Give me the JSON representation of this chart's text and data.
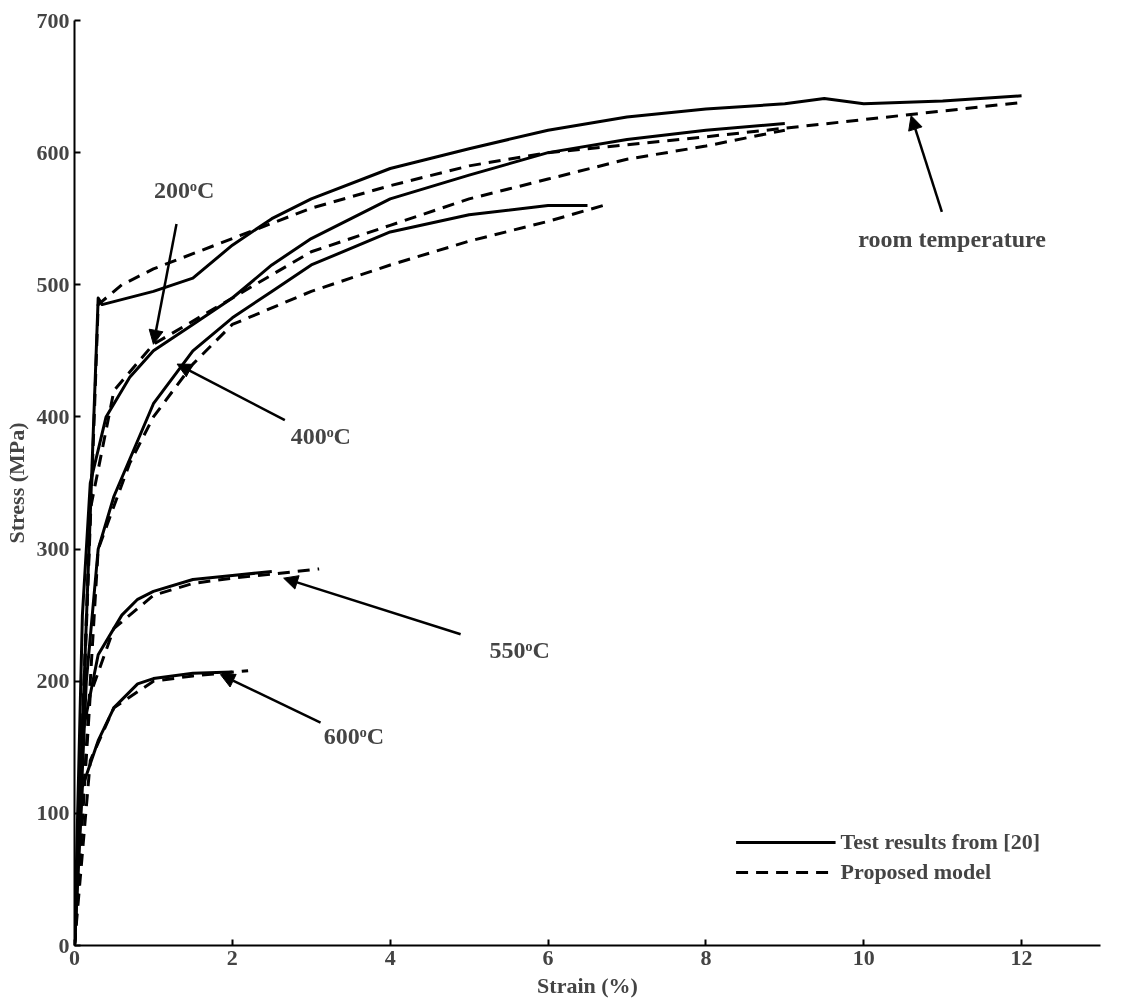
{
  "chart_data": {
    "type": "line",
    "xlabel": "Strain (%)",
    "ylabel": "Stress (MPa)",
    "xlim": [
      0,
      13
    ],
    "ylim": [
      0,
      700
    ],
    "xticks": [
      0,
      2,
      4,
      6,
      8,
      10,
      12
    ],
    "yticks": [
      0,
      100,
      200,
      300,
      400,
      500,
      600,
      700
    ],
    "grid": false,
    "legend": "bottom right",
    "marker": "none",
    "series": [
      {
        "name": "Test results from [20]",
        "color": "#000000",
        "line_style": "solid",
        "x": [
          0,
          0.3,
          0.35,
          1,
          1.5,
          2,
          2.5,
          3,
          4,
          5,
          6,
          7,
          8,
          9,
          9.5,
          10,
          11,
          12
        ],
        "values": [
          0,
          490,
          485,
          495,
          505,
          530,
          550,
          565,
          588,
          603,
          617,
          627,
          633,
          637,
          641,
          637,
          639,
          643
        ]
      },
      {
        "name": "Proposed model",
        "color": "#000000",
        "line_style": "dashed",
        "x": [
          0,
          0.25,
          0.3,
          0.6,
          1,
          2,
          3,
          4,
          5,
          6,
          8,
          10,
          12
        ],
        "values": [
          0,
          400,
          485,
          500,
          512,
          535,
          558,
          575,
          590,
          600,
          612,
          625,
          638
        ]
      },
      {
        "color": "#000000",
        "line_style": "solid",
        "x": [
          0,
          0.1,
          0.2,
          0.4,
          0.7,
          1,
          1.5,
          2,
          2.5,
          3,
          4,
          5,
          6,
          7,
          8,
          9
        ],
        "values": [
          0,
          250,
          350,
          400,
          430,
          450,
          470,
          490,
          515,
          535,
          565,
          583,
          600,
          610,
          617,
          622
        ]
      },
      {
        "color": "#000000",
        "line_style": "dashed",
        "x": [
          0,
          0.2,
          0.5,
          1,
          2,
          3,
          4,
          5,
          6,
          7,
          8,
          9
        ],
        "values": [
          0,
          330,
          420,
          455,
          490,
          525,
          545,
          565,
          580,
          595,
          605,
          617
        ]
      },
      {
        "color": "#000000",
        "line_style": "solid",
        "x": [
          0,
          0.15,
          0.3,
          0.5,
          1,
          1.5,
          2,
          2.5,
          3,
          4,
          5,
          6,
          6.5
        ],
        "values": [
          0,
          200,
          300,
          340,
          410,
          450,
          475,
          495,
          515,
          540,
          553,
          560,
          560
        ]
      },
      {
        "color": "#000000",
        "line_style": "dashed",
        "x": [
          0,
          0.3,
          0.7,
          1,
          1.5,
          2,
          3,
          4,
          5,
          6,
          6.7
        ],
        "values": [
          0,
          300,
          365,
          400,
          440,
          470,
          495,
          515,
          533,
          548,
          560
        ]
      },
      {
        "color": "#000000",
        "line_style": "solid",
        "x": [
          0,
          0.1,
          0.3,
          0.6,
          0.8,
          1,
          1.5,
          2,
          2.5
        ],
        "values": [
          0,
          160,
          220,
          250,
          262,
          268,
          277,
          280,
          283
        ]
      },
      {
        "color": "#000000",
        "line_style": "dashed",
        "x": [
          0,
          0.2,
          0.5,
          1,
          1.5,
          2,
          2.5,
          3.1
        ],
        "values": [
          0,
          190,
          240,
          265,
          274,
          278,
          281,
          285
        ]
      },
      {
        "color": "#000000",
        "line_style": "solid",
        "x": [
          0,
          0.1,
          0.3,
          0.5,
          0.8,
          1,
          1.5,
          2
        ],
        "values": [
          0,
          120,
          155,
          180,
          198,
          202,
          206,
          207
        ]
      },
      {
        "color": "#000000",
        "line_style": "dashed",
        "x": [
          0,
          0.2,
          0.5,
          1,
          1.5,
          2.2
        ],
        "values": [
          0,
          140,
          180,
          200,
          204,
          208
        ]
      }
    ],
    "annotations": [
      {
        "text": "200ᵒC",
        "x": 1,
        "y": 455
      },
      {
        "text": "400ᵒC",
        "x": 1.3,
        "y": 440
      },
      {
        "text": "550ᵒC",
        "x": 2.65,
        "y": 278
      },
      {
        "text": "600ᵒC",
        "x": 1.85,
        "y": 205
      },
      {
        "text": "room temperature",
        "x": 10.6,
        "y": 628
      }
    ]
  }
}
